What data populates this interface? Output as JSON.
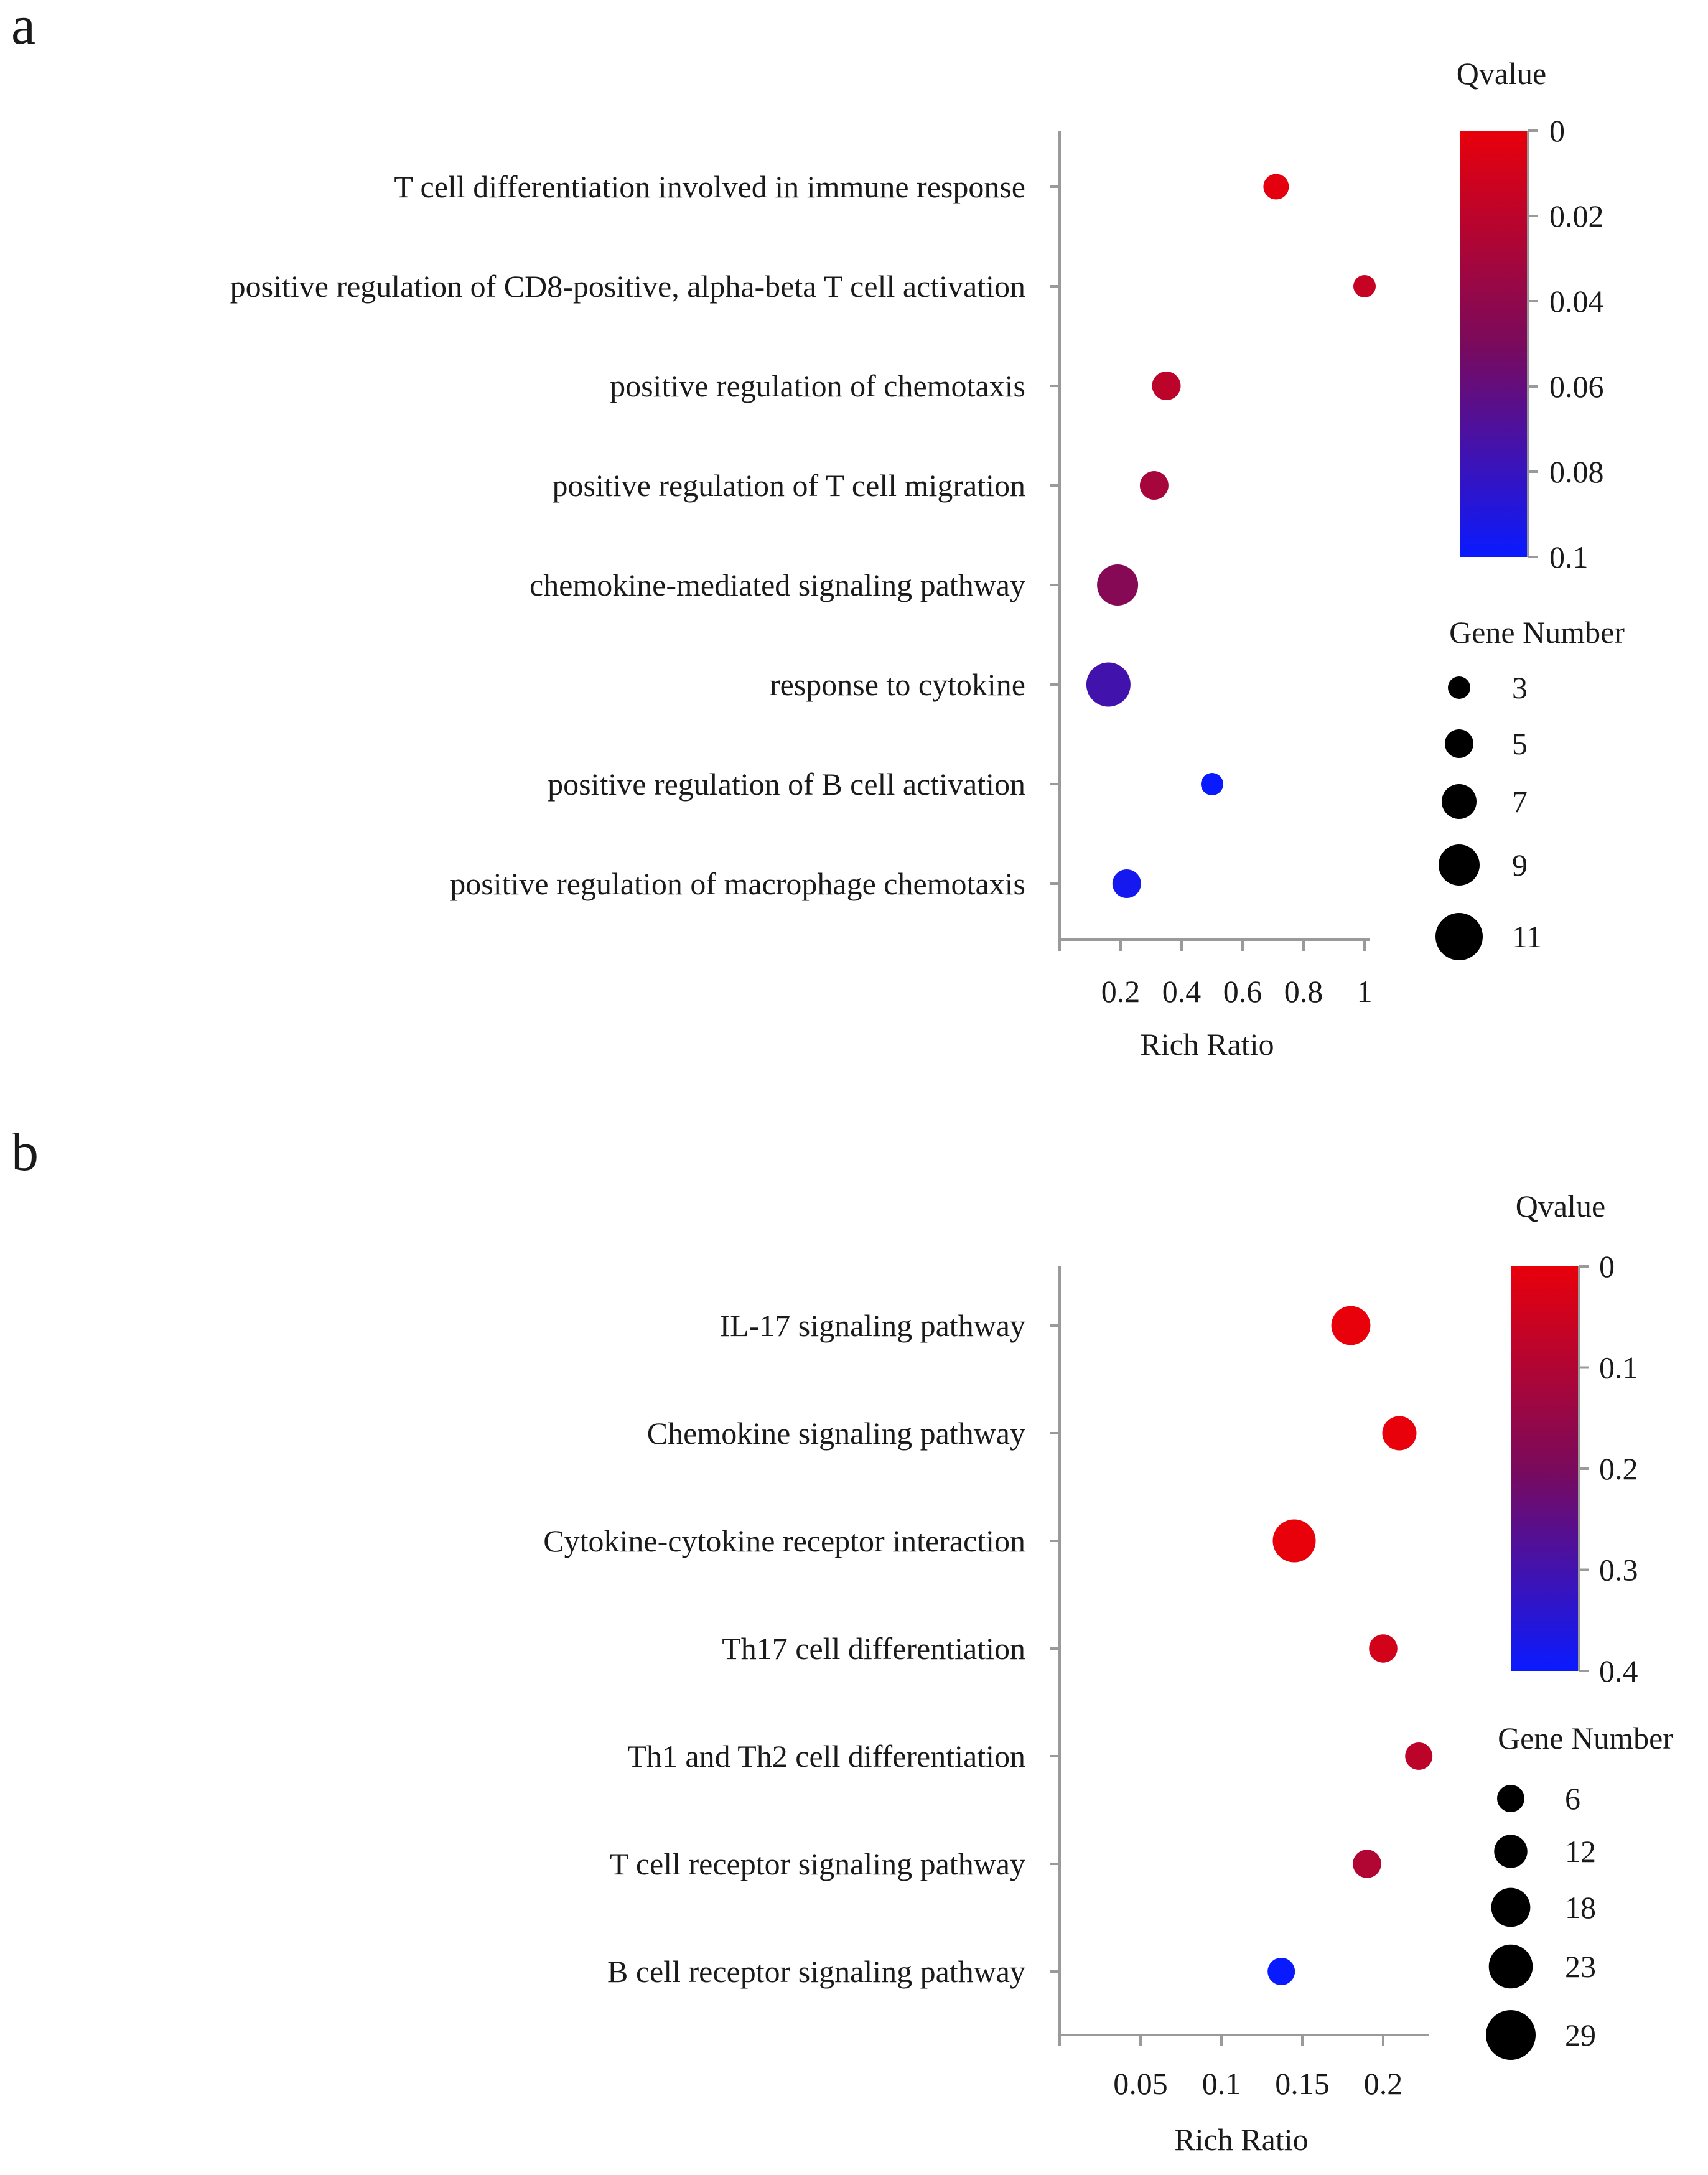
{
  "chart_data": [
    {
      "panel_letter": "a",
      "type": "scatter",
      "xlabel": "Rich Ratio",
      "x_ticks": [
        0.2,
        0.4,
        0.6,
        0.8,
        1
      ],
      "x_tick_labels": [
        "0.2",
        "0.4",
        "0.6",
        "0.8",
        "1"
      ],
      "xlim": [
        0,
        1
      ],
      "categories": [
        "T cell differentiation involved in immune response",
        "positive regulation of CD8-positive, alpha-beta T cell activation",
        "positive regulation of chemotaxis",
        "positive regulation of T cell migration",
        "chemokine-mediated signaling pathway",
        "response to cytokine",
        "positive regulation of B cell activation",
        "positive regulation of macrophage chemotaxis"
      ],
      "points": [
        {
          "category": "T cell differentiation involved in immune response",
          "rich_ratio": 0.71,
          "qvalue": 0.002,
          "gene_number": 4
        },
        {
          "category": "positive regulation of CD8-positive, alpha-beta T cell activation",
          "rich_ratio": 1.0,
          "qvalue": 0.015,
          "gene_number": 3
        },
        {
          "category": "positive regulation of chemotaxis",
          "rich_ratio": 0.35,
          "qvalue": 0.02,
          "gene_number": 5
        },
        {
          "category": "positive regulation of T cell migration",
          "rich_ratio": 0.31,
          "qvalue": 0.03,
          "gene_number": 5
        },
        {
          "category": "chemokine-mediated signaling pathway",
          "rich_ratio": 0.19,
          "qvalue": 0.045,
          "gene_number": 9
        },
        {
          "category": "response to cytokine",
          "rich_ratio": 0.16,
          "qvalue": 0.075,
          "gene_number": 10
        },
        {
          "category": "positive regulation of B cell activation",
          "rich_ratio": 0.5,
          "qvalue": 0.1,
          "gene_number": 3
        },
        {
          "category": "positive regulation of macrophage chemotaxis",
          "rich_ratio": 0.22,
          "qvalue": 0.095,
          "gene_number": 5
        }
      ],
      "color_legend": {
        "title": "Qvalue",
        "min": 0,
        "max": 0.1,
        "ticks": [
          0,
          0.02,
          0.04,
          0.06,
          0.08,
          0.1
        ],
        "tick_labels": [
          "0",
          "0.02",
          "0.04",
          "0.06",
          "0.08",
          "0.1"
        ],
        "low_color": "#e8000b",
        "mid_color": "#7a0a5c",
        "high_color": "#0a1aff"
      },
      "size_legend": {
        "title": "Gene Number",
        "values": [
          3,
          5,
          7,
          9,
          11
        ],
        "labels": [
          "3",
          "5",
          "7",
          "9",
          "11"
        ]
      }
    },
    {
      "panel_letter": "b",
      "type": "scatter",
      "xlabel": "Rich Ratio",
      "x_ticks": [
        0.05,
        0.1,
        0.15,
        0.2
      ],
      "x_tick_labels": [
        "0.05",
        "0.1",
        "0.15",
        "0.2"
      ],
      "xlim": [
        0,
        0.225
      ],
      "categories": [
        "IL-17 signaling pathway",
        "Chemokine signaling pathway",
        "Cytokine-cytokine receptor interaction",
        "Th17 cell differentiation",
        "Th1 and Th2 cell differentiation",
        "T cell receptor signaling pathway",
        "B cell receptor signaling pathway"
      ],
      "points": [
        {
          "category": "IL-17 signaling pathway",
          "rich_ratio": 0.18,
          "qvalue": 0.0,
          "gene_number": 18
        },
        {
          "category": "Chemokine signaling pathway",
          "rich_ratio": 0.21,
          "qvalue": 0.0,
          "gene_number": 13
        },
        {
          "category": "Cytokine-cytokine receptor interaction",
          "rich_ratio": 0.145,
          "qvalue": 0.0,
          "gene_number": 22
        },
        {
          "category": "Th17 cell differentiation",
          "rich_ratio": 0.2,
          "qvalue": 0.04,
          "gene_number": 7
        },
        {
          "category": "Th1 and Th2 cell differentiation",
          "rich_ratio": 0.222,
          "qvalue": 0.08,
          "gene_number": 6
        },
        {
          "category": "T cell receptor signaling pathway",
          "rich_ratio": 0.19,
          "qvalue": 0.1,
          "gene_number": 7
        },
        {
          "category": "B cell receptor signaling pathway",
          "rich_ratio": 0.137,
          "qvalue": 0.4,
          "gene_number": 6
        }
      ],
      "color_legend": {
        "title": "Qvalue",
        "min": 0,
        "max": 0.4,
        "ticks": [
          0,
          0.1,
          0.2,
          0.3,
          0.4
        ],
        "tick_labels": [
          "0",
          "0.1",
          "0.2",
          "0.3",
          "0.4"
        ],
        "low_color": "#e8000b",
        "mid_color": "#7a0a5c",
        "high_color": "#0a1aff"
      },
      "size_legend": {
        "title": "Gene Number",
        "values": [
          6,
          12,
          18,
          23,
          29
        ],
        "labels": [
          "6",
          "12",
          "18",
          "23",
          "29"
        ]
      }
    }
  ]
}
